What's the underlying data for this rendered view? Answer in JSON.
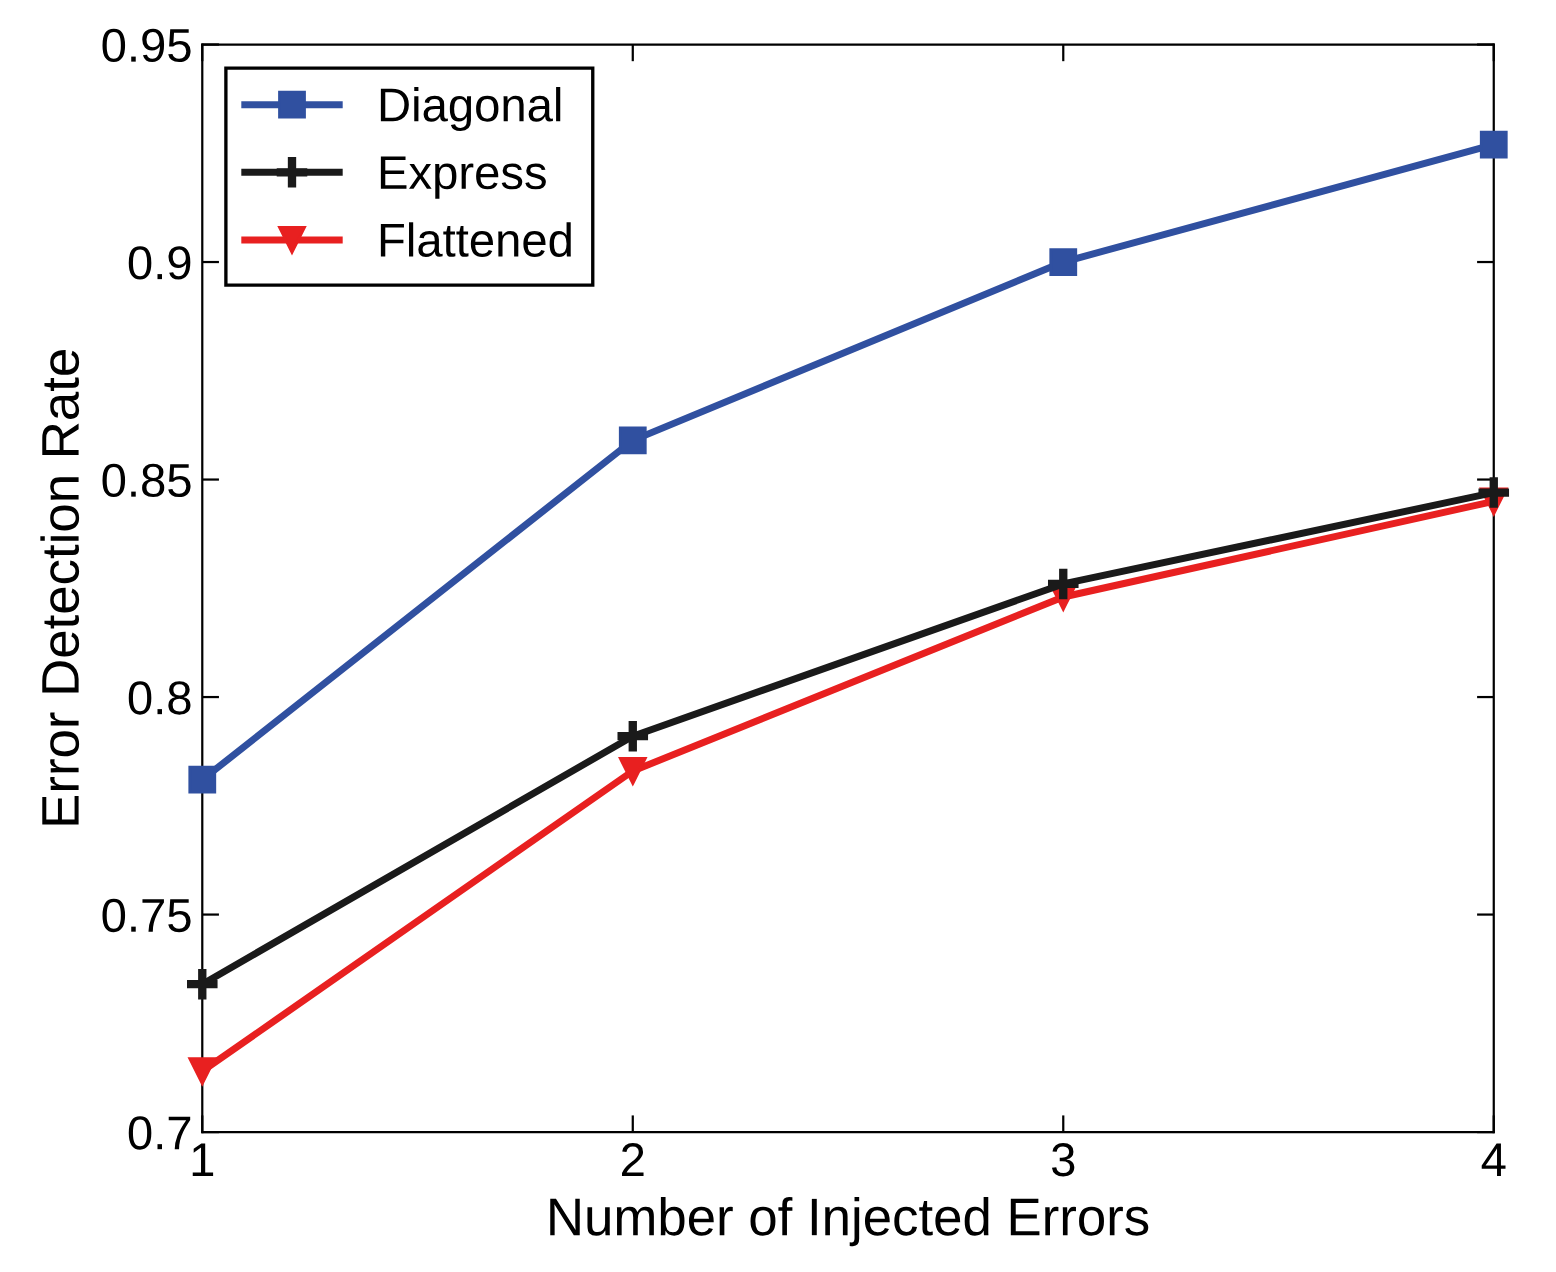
{
  "chart_data": {
    "type": "line",
    "xlabel": "Number of Injected Errors",
    "ylabel": "Error Detection Rate",
    "x": [
      1,
      2,
      3,
      4
    ],
    "series": [
      {
        "name": "Diagonal",
        "color": "#3050a0",
        "marker": "square",
        "values": [
          0.781,
          0.859,
          0.9,
          0.927
        ]
      },
      {
        "name": "Express",
        "color": "#1a1a1a",
        "marker": "cross",
        "values": [
          0.734,
          0.791,
          0.826,
          0.847
        ]
      },
      {
        "name": "Flattened",
        "color": "#e82020",
        "marker": "triangle",
        "values": [
          0.714,
          0.783,
          0.823,
          0.845
        ]
      }
    ],
    "xlim": [
      1,
      4
    ],
    "xticks": [
      1,
      2,
      3,
      4
    ],
    "ylim": [
      0.7,
      0.95
    ],
    "yticks": [
      0.7,
      0.75,
      0.8,
      0.85,
      0.9,
      0.95
    ],
    "grid": false,
    "legend": "top left",
    "line_style": "solid"
  }
}
